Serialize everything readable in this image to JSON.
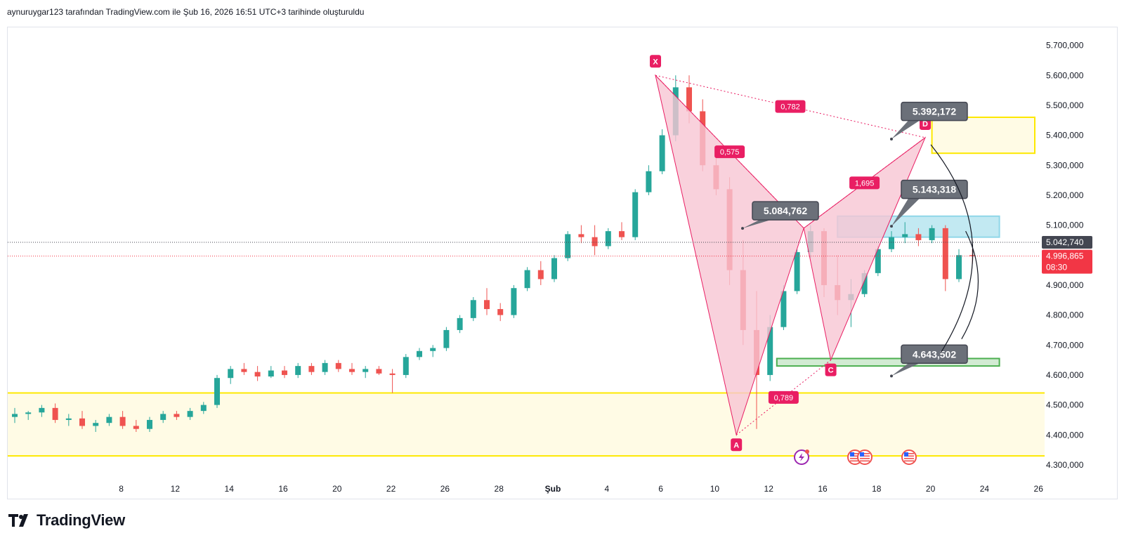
{
  "header": {
    "caption": "aynuruygar123 tarafından TradingView.com ile Şub 16, 2026 16:51 UTC+3 tarihinde oluşturuldu"
  },
  "footer": {
    "brand": "TradingView",
    "logo_icon": "tradingview-logo-icon"
  },
  "colors": {
    "up": "#26a69a",
    "down": "#ef5350",
    "pattern_fill": "#f7c5d3",
    "pattern_line": "#e91e63",
    "point_label_bg": "#e91e63",
    "yellow_zone": "#fde800",
    "yellow_fill": "#fffbe5",
    "blue_zone": "#8fd7e8",
    "green_zone": "#4caf50",
    "callout_bg": "#6b7079",
    "price_tag_grey": "#434651",
    "price_tag_red": "#f23645"
  },
  "price_axis": {
    "labels": [
      "5.700,000",
      "5.600,000",
      "5.500,000",
      "5.400,000",
      "5.300,000",
      "5.200,000",
      "5.100,000",
      "4.900,000",
      "4.800,000",
      "4.700,000",
      "4.600,000",
      "4.500,000",
      "4.400,000",
      "4.300,000"
    ],
    "values": [
      5700000,
      5600000,
      5500000,
      5400000,
      5300000,
      5200000,
      5100000,
      4900000,
      4800000,
      4700000,
      4600000,
      4500000,
      4400000,
      4300000
    ]
  },
  "time_axis": {
    "labels": [
      "8",
      "12",
      "14",
      "16",
      "20",
      "22",
      "26",
      "28",
      "Şub",
      "4",
      "6",
      "10",
      "12",
      "16",
      "18",
      "20",
      "24",
      "26"
    ],
    "index": [
      8,
      12,
      16,
      20,
      24,
      28,
      32,
      36,
      40,
      44,
      48,
      52,
      56,
      60,
      64,
      68,
      72,
      76
    ]
  },
  "price_tags": [
    {
      "text": "5.042,740",
      "value": 5042740,
      "color": "#434651",
      "countdown": ""
    },
    {
      "text": "4.996,865",
      "value": 4996865,
      "color": "#f23645",
      "countdown": "08:30"
    }
  ],
  "callouts": [
    {
      "text": "5.392,172",
      "value": 5392172,
      "bar_index": 66
    },
    {
      "text": "5.143,318",
      "value": 5143318,
      "bar_index": 66
    },
    {
      "text": "5.084,762",
      "value": 5084762,
      "bar_index": 55
    },
    {
      "text": "4.643,502",
      "value": 4643502,
      "bar_index": 66
    }
  ],
  "chart_data": {
    "type": "candlestick",
    "instrument_price_scale": "log-free linear",
    "ylim": [
      4260000,
      5760000
    ],
    "candles": [
      [
        4460000,
        4490000,
        4440000,
        4470000
      ],
      [
        4470000,
        4480000,
        4450000,
        4475000
      ],
      [
        4475000,
        4500000,
        4460000,
        4490000
      ],
      [
        4490000,
        4505000,
        4440000,
        4450000
      ],
      [
        4450000,
        4470000,
        4430000,
        4455000
      ],
      [
        4455000,
        4480000,
        4420000,
        4430000
      ],
      [
        4430000,
        4450000,
        4410000,
        4440000
      ],
      [
        4440000,
        4470000,
        4430000,
        4460000
      ],
      [
        4460000,
        4480000,
        4420000,
        4430000
      ],
      [
        4430000,
        4450000,
        4410000,
        4420000
      ],
      [
        4420000,
        4460000,
        4410000,
        4450000
      ],
      [
        4450000,
        4480000,
        4440000,
        4470000
      ],
      [
        4470000,
        4480000,
        4450000,
        4460000
      ],
      [
        4460000,
        4490000,
        4450000,
        4480000
      ],
      [
        4480000,
        4510000,
        4470000,
        4500000
      ],
      [
        4500000,
        4600000,
        4490000,
        4590000
      ],
      [
        4590000,
        4630000,
        4570000,
        4620000
      ],
      [
        4620000,
        4640000,
        4600000,
        4610000
      ],
      [
        4610000,
        4630000,
        4580000,
        4595000
      ],
      [
        4595000,
        4630000,
        4590000,
        4615000
      ],
      [
        4615000,
        4630000,
        4590000,
        4600000
      ],
      [
        4600000,
        4640000,
        4590000,
        4630000
      ],
      [
        4630000,
        4640000,
        4600000,
        4610000
      ],
      [
        4610000,
        4650000,
        4600000,
        4640000
      ],
      [
        4640000,
        4650000,
        4610000,
        4620000
      ],
      [
        4620000,
        4640000,
        4600000,
        4610000
      ],
      [
        4610000,
        4630000,
        4590000,
        4620000
      ],
      [
        4620000,
        4630000,
        4600000,
        4605000
      ],
      [
        4605000,
        4620000,
        4540000,
        4600000
      ],
      [
        4600000,
        4670000,
        4590000,
        4660000
      ],
      [
        4660000,
        4690000,
        4650000,
        4680000
      ],
      [
        4680000,
        4700000,
        4660000,
        4690000
      ],
      [
        4690000,
        4760000,
        4680000,
        4750000
      ],
      [
        4750000,
        4800000,
        4740000,
        4790000
      ],
      [
        4790000,
        4860000,
        4780000,
        4850000
      ],
      [
        4850000,
        4890000,
        4800000,
        4820000
      ],
      [
        4820000,
        4840000,
        4780000,
        4800000
      ],
      [
        4800000,
        4900000,
        4790000,
        4890000
      ],
      [
        4890000,
        4960000,
        4880000,
        4950000
      ],
      [
        4950000,
        4980000,
        4900000,
        4920000
      ],
      [
        4920000,
        5000000,
        4910000,
        4990000
      ],
      [
        4990000,
        5080000,
        4980000,
        5070000
      ],
      [
        5070000,
        5100000,
        5040000,
        5060000
      ],
      [
        5060000,
        5100000,
        5000000,
        5030000
      ],
      [
        5030000,
        5090000,
        5020000,
        5080000
      ],
      [
        5080000,
        5110000,
        5050000,
        5060000
      ],
      [
        5060000,
        5220000,
        5050000,
        5210000
      ],
      [
        5210000,
        5300000,
        5200000,
        5280000
      ],
      [
        5280000,
        5420000,
        5270000,
        5400000
      ],
      [
        5400000,
        5600000,
        5380000,
        5560000
      ],
      [
        5560000,
        5600000,
        5440000,
        5480000
      ],
      [
        5480000,
        5520000,
        5280000,
        5300000
      ],
      [
        5300000,
        5350000,
        5200000,
        5220000
      ],
      [
        5220000,
        5260000,
        4900000,
        4950000
      ],
      [
        4950000,
        5050000,
        4700000,
        4750000
      ],
      [
        4750000,
        4880000,
        4420000,
        4600000
      ],
      [
        4600000,
        4800000,
        4580000,
        4760000
      ],
      [
        4760000,
        4900000,
        4750000,
        4880000
      ],
      [
        4880000,
        5020000,
        4870000,
        5010000
      ],
      [
        5010000,
        5100000,
        4990000,
        5080000
      ],
      [
        5080000,
        5090000,
        4860000,
        4900000
      ],
      [
        4900000,
        5000000,
        4800000,
        4850000
      ],
      [
        4850000,
        4920000,
        4760000,
        4870000
      ],
      [
        4870000,
        4950000,
        4860000,
        4940000
      ],
      [
        4940000,
        5030000,
        4930000,
        5020000
      ],
      [
        5020000,
        5080000,
        5010000,
        5060000
      ],
      [
        5060000,
        5110000,
        5040000,
        5070000
      ],
      [
        5070000,
        5090000,
        5030000,
        5050000
      ],
      [
        5050000,
        5100000,
        5040000,
        5090000
      ],
      [
        5090000,
        5100000,
        4880000,
        4920000
      ],
      [
        4920000,
        5020000,
        4910000,
        5000000
      ],
      [
        5000000,
        5020000,
        4970000,
        4996865
      ]
    ],
    "harmonic_pattern": {
      "points": [
        {
          "label": "X",
          "bar_index": 47.5,
          "value": 5600000
        },
        {
          "label": "A",
          "bar_index": 53.5,
          "value": 4400000
        },
        {
          "label": "B",
          "bar_index": 58.5,
          "value": 5090000
        },
        {
          "label": "C",
          "bar_index": 60.5,
          "value": 4650000
        },
        {
          "label": "D",
          "bar_index": 67.5,
          "value": 5392172
        }
      ],
      "ratios": [
        {
          "text": "0,782",
          "from": "X",
          "to": "D"
        },
        {
          "text": "0,575",
          "from": "X",
          "to": "B"
        },
        {
          "text": "1,695",
          "from": "B",
          "to": "D"
        },
        {
          "text": "0,789",
          "from": "A",
          "to": "C"
        }
      ]
    },
    "zones": [
      {
        "name": "upper-yellow",
        "top": 5460000,
        "bottom": 5340000,
        "from_index": 68,
        "to_index": 86
      },
      {
        "name": "lower-yellow",
        "top": 4540000,
        "bottom": 4330000,
        "from_index": 0,
        "to_index": 86
      },
      {
        "name": "blue-box",
        "top": 5130000,
        "bottom": 5060000,
        "from_index": 61,
        "to_index": 73
      },
      {
        "name": "green-box",
        "top": 4655000,
        "bottom": 4630000,
        "from_index": 56.5,
        "to_index": 73
      }
    ],
    "grid": false,
    "legend": "none"
  },
  "event_icons": [
    "flash-icon",
    "us-flag-icon",
    "us-flag-icon",
    "us-flag-icon"
  ]
}
